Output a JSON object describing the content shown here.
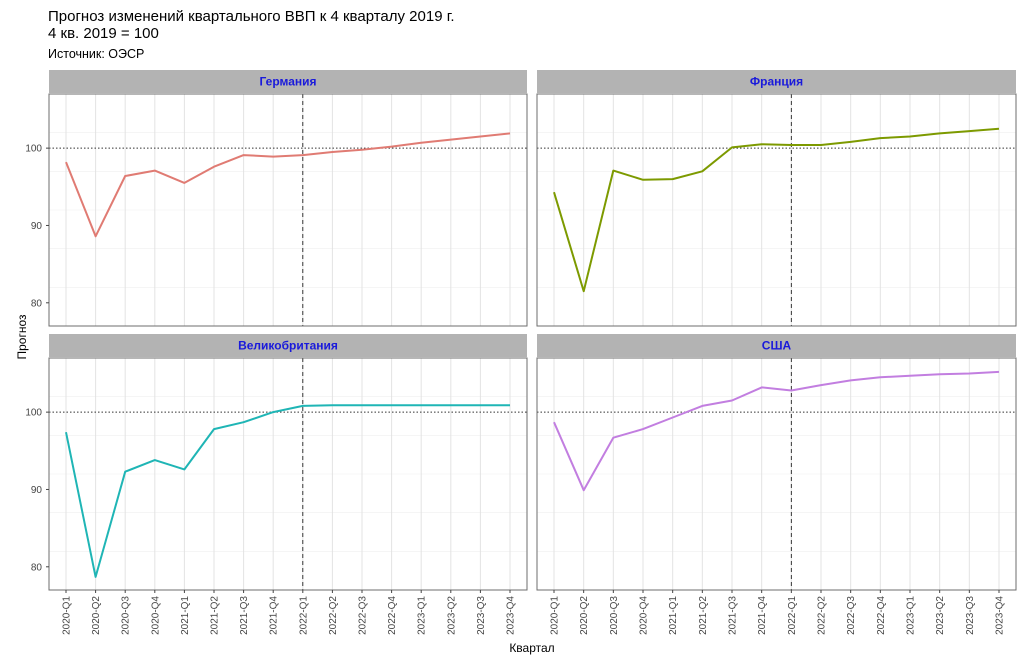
{
  "header": {
    "title_line1": "Прогноз изменений квартального ВВП к 4 кварталу 2019 г.",
    "title_line2": "4 кв. 2019 = 100",
    "source": "Источник: ОЭСР"
  },
  "axes": {
    "ylabel": "Прогноз",
    "xlabel": "Квартал"
  },
  "chart_data": {
    "type": "line",
    "facet": "2x2",
    "ylim": [
      77,
      107
    ],
    "yticks": [
      80,
      90,
      100
    ],
    "reference_hline": 100,
    "reference_vline_category": "2022-Q1",
    "grid": true,
    "categories": [
      "2020-Q1",
      "2020-Q2",
      "2020-Q3",
      "2020-Q4",
      "2021-Q1",
      "2021-Q2",
      "2021-Q3",
      "2021-Q4",
      "2022-Q1",
      "2022-Q2",
      "2022-Q3",
      "2022-Q4",
      "2023-Q1",
      "2023-Q2",
      "2023-Q3",
      "2023-Q4"
    ],
    "series": [
      {
        "name": "Германия",
        "color": "#e07b73",
        "values": [
          98.2,
          88.6,
          96.4,
          97.1,
          95.5,
          97.6,
          99.1,
          98.9,
          99.1,
          99.5,
          99.8,
          100.2,
          100.7,
          101.1,
          101.5,
          101.9
        ]
      },
      {
        "name": "Франция",
        "color": "#7d9a00",
        "values": [
          94.3,
          81.5,
          97.1,
          95.9,
          96.0,
          97.0,
          100.1,
          100.5,
          100.4,
          100.4,
          100.8,
          101.3,
          101.5,
          101.9,
          102.2,
          102.5
        ]
      },
      {
        "name": "Великобритания",
        "color": "#1fb5b5",
        "values": [
          97.4,
          78.7,
          92.3,
          93.8,
          92.6,
          97.8,
          98.7,
          100.0,
          100.8,
          100.9,
          100.9,
          100.9,
          100.9,
          100.9,
          100.9,
          100.9
        ]
      },
      {
        "name": "США",
        "color": "#c27ee0",
        "values": [
          98.7,
          89.9,
          96.7,
          97.8,
          99.3,
          100.8,
          101.5,
          103.2,
          102.8,
          103.5,
          104.1,
          104.5,
          104.7,
          104.9,
          105.0,
          105.2
        ]
      }
    ]
  }
}
